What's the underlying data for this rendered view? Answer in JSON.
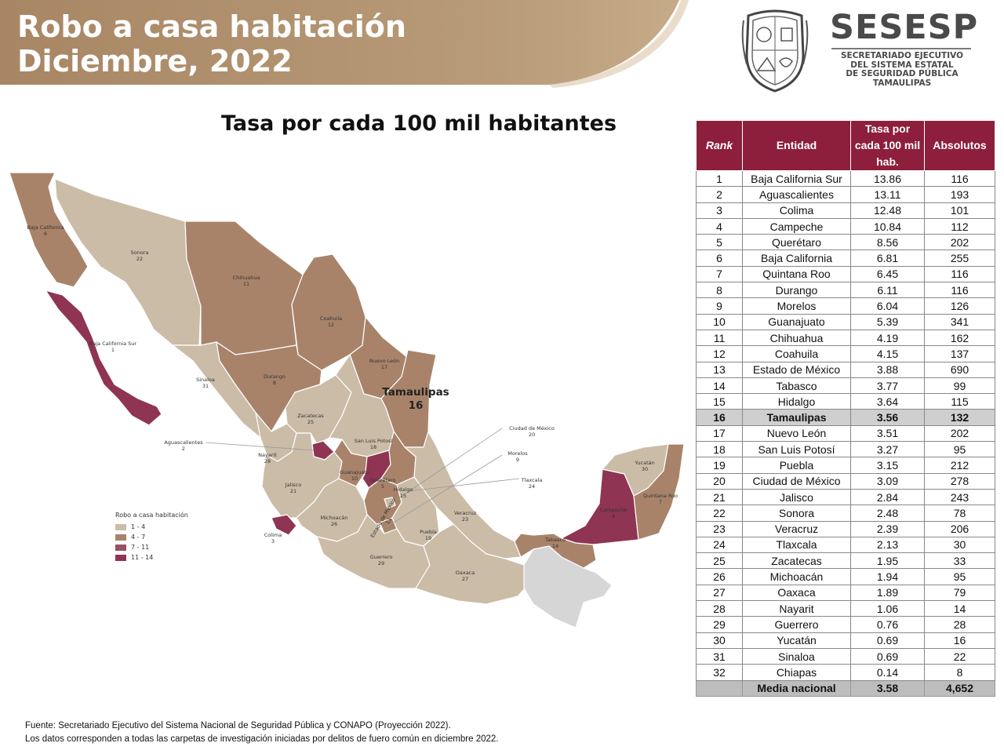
{
  "header": {
    "title_line1": "Robo a casa habitación",
    "title_line2": "Diciembre, 2022",
    "banner_color": "#b0906a"
  },
  "logo": {
    "name": "SESESP",
    "subtitle_lines": [
      "SECRETARIADO EJECUTIVO",
      "DEL SISTEMA ESTATAL",
      "DE SEGURIDAD PÚBLICA",
      "TAMAULIPAS"
    ],
    "seal_icon": "coat-of-arms-icon"
  },
  "subtitle": "Tasa por cada 100 mil habitantes",
  "map": {
    "legend": {
      "title": "Robo a casa habitación",
      "items": [
        {
          "label": "1 - 4",
          "color": "#cbbca7"
        },
        {
          "label": "4 - 7",
          "color": "#a8836a"
        },
        {
          "label": "7 - 11",
          "color": "#9a5062"
        },
        {
          "label": "11 - 14",
          "color": "#8f3452"
        }
      ]
    },
    "highlight": {
      "name": "Tamaulipas",
      "rank": "16"
    },
    "state_labels": [
      {
        "name": "Baja California",
        "rank": "6"
      },
      {
        "name": "Sonora",
        "rank": "22"
      },
      {
        "name": "Chihuahua",
        "rank": "11"
      },
      {
        "name": "Coahuila",
        "rank": "12"
      },
      {
        "name": "Nuevo León",
        "rank": "17"
      },
      {
        "name": "Baja California Sur",
        "rank": "1"
      },
      {
        "name": "Sinaloa",
        "rank": "31"
      },
      {
        "name": "Durango",
        "rank": "8"
      },
      {
        "name": "Zacatecas",
        "rank": "25"
      },
      {
        "name": "San Luis Potosí",
        "rank": "18"
      },
      {
        "name": "Aguascalientes",
        "rank": "2"
      },
      {
        "name": "Nayarit",
        "rank": "28"
      },
      {
        "name": "Jalisco",
        "rank": "21"
      },
      {
        "name": "Guanajuato",
        "rank": "10"
      },
      {
        "name": "Querétaro",
        "rank": "5"
      },
      {
        "name": "Hidalgo",
        "rank": "15"
      },
      {
        "name": "Estado de México",
        "rank": "13"
      },
      {
        "name": "Michoacán",
        "rank": "26"
      },
      {
        "name": "Colima",
        "rank": "3"
      },
      {
        "name": "Guerrero",
        "rank": "29"
      },
      {
        "name": "Puebla",
        "rank": "19"
      },
      {
        "name": "Veracruz",
        "rank": "23"
      },
      {
        "name": "Oaxaca",
        "rank": "27"
      },
      {
        "name": "Tabasco",
        "rank": "14"
      },
      {
        "name": "Campeche",
        "rank": "4"
      },
      {
        "name": "Yucatán",
        "rank": "30"
      },
      {
        "name": "Quintana Roo",
        "rank": "7"
      },
      {
        "name": "Ciudad de México",
        "rank": "20"
      },
      {
        "name": "Morelos",
        "rank": "9"
      },
      {
        "name": "Tlaxcala",
        "rank": "24"
      }
    ]
  },
  "table": {
    "headers": {
      "rank": "Rank",
      "entidad": "Entidad",
      "tasa_lines": [
        "Tasa por",
        "cada 100 mil",
        "hab."
      ],
      "absolutos": "Absolutos"
    },
    "header_color": "#8d1f3c",
    "rows": [
      {
        "rank": "1",
        "entidad": "Baja California Sur",
        "tasa": "13.86",
        "abs": "116"
      },
      {
        "rank": "2",
        "entidad": "Aguascalientes",
        "tasa": "13.11",
        "abs": "193"
      },
      {
        "rank": "3",
        "entidad": "Colima",
        "tasa": "12.48",
        "abs": "101"
      },
      {
        "rank": "4",
        "entidad": "Campeche",
        "tasa": "10.84",
        "abs": "112"
      },
      {
        "rank": "5",
        "entidad": "Querétaro",
        "tasa": "8.56",
        "abs": "202"
      },
      {
        "rank": "6",
        "entidad": "Baja California",
        "tasa": "6.81",
        "abs": "255"
      },
      {
        "rank": "7",
        "entidad": "Quintana Roo",
        "tasa": "6.45",
        "abs": "116"
      },
      {
        "rank": "8",
        "entidad": "Durango",
        "tasa": "6.11",
        "abs": "116"
      },
      {
        "rank": "9",
        "entidad": "Morelos",
        "tasa": "6.04",
        "abs": "126"
      },
      {
        "rank": "10",
        "entidad": "Guanajuato",
        "tasa": "5.39",
        "abs": "341"
      },
      {
        "rank": "11",
        "entidad": "Chihuahua",
        "tasa": "4.19",
        "abs": "162"
      },
      {
        "rank": "12",
        "entidad": "Coahuila",
        "tasa": "4.15",
        "abs": "137"
      },
      {
        "rank": "13",
        "entidad": "Estado de México",
        "tasa": "3.88",
        "abs": "690"
      },
      {
        "rank": "14",
        "entidad": "Tabasco",
        "tasa": "3.77",
        "abs": "99"
      },
      {
        "rank": "15",
        "entidad": "Hidalgo",
        "tasa": "3.64",
        "abs": "115"
      },
      {
        "rank": "16",
        "entidad": "Tamaulipas",
        "tasa": "3.56",
        "abs": "132",
        "highlight": true
      },
      {
        "rank": "17",
        "entidad": "Nuevo León",
        "tasa": "3.51",
        "abs": "202"
      },
      {
        "rank": "18",
        "entidad": "San Luis Potosí",
        "tasa": "3.27",
        "abs": "95"
      },
      {
        "rank": "19",
        "entidad": "Puebla",
        "tasa": "3.15",
        "abs": "212"
      },
      {
        "rank": "20",
        "entidad": "Ciudad de México",
        "tasa": "3.09",
        "abs": "278"
      },
      {
        "rank": "21",
        "entidad": "Jalisco",
        "tasa": "2.84",
        "abs": "243"
      },
      {
        "rank": "22",
        "entidad": "Sonora",
        "tasa": "2.48",
        "abs": "78"
      },
      {
        "rank": "23",
        "entidad": "Veracruz",
        "tasa": "2.39",
        "abs": "206"
      },
      {
        "rank": "24",
        "entidad": "Tlaxcala",
        "tasa": "2.13",
        "abs": "30"
      },
      {
        "rank": "25",
        "entidad": "Zacatecas",
        "tasa": "1.95",
        "abs": "33"
      },
      {
        "rank": "26",
        "entidad": "Michoacán",
        "tasa": "1.94",
        "abs": "95"
      },
      {
        "rank": "27",
        "entidad": "Oaxaca",
        "tasa": "1.89",
        "abs": "79"
      },
      {
        "rank": "28",
        "entidad": "Nayarit",
        "tasa": "1.06",
        "abs": "14"
      },
      {
        "rank": "29",
        "entidad": "Guerrero",
        "tasa": "0.76",
        "abs": "28"
      },
      {
        "rank": "30",
        "entidad": "Yucatán",
        "tasa": "0.69",
        "abs": "16"
      },
      {
        "rank": "31",
        "entidad": "Sinaloa",
        "tasa": "0.69",
        "abs": "22"
      },
      {
        "rank": "32",
        "entidad": "Chiapas",
        "tasa": "0.14",
        "abs": "8"
      }
    ],
    "summary": {
      "label": "Media nacional",
      "tasa": "3.58",
      "abs": "4,652"
    }
  },
  "footer": {
    "source": "Fuente: Secretariado Ejecutivo del Sistema Nacional de Seguridad Pública y CONAPO (Proyección 2022).",
    "note": "Los datos corresponden a todas las carpetas de investigación iniciadas por delitos de fuero común en diciembre 2022."
  }
}
